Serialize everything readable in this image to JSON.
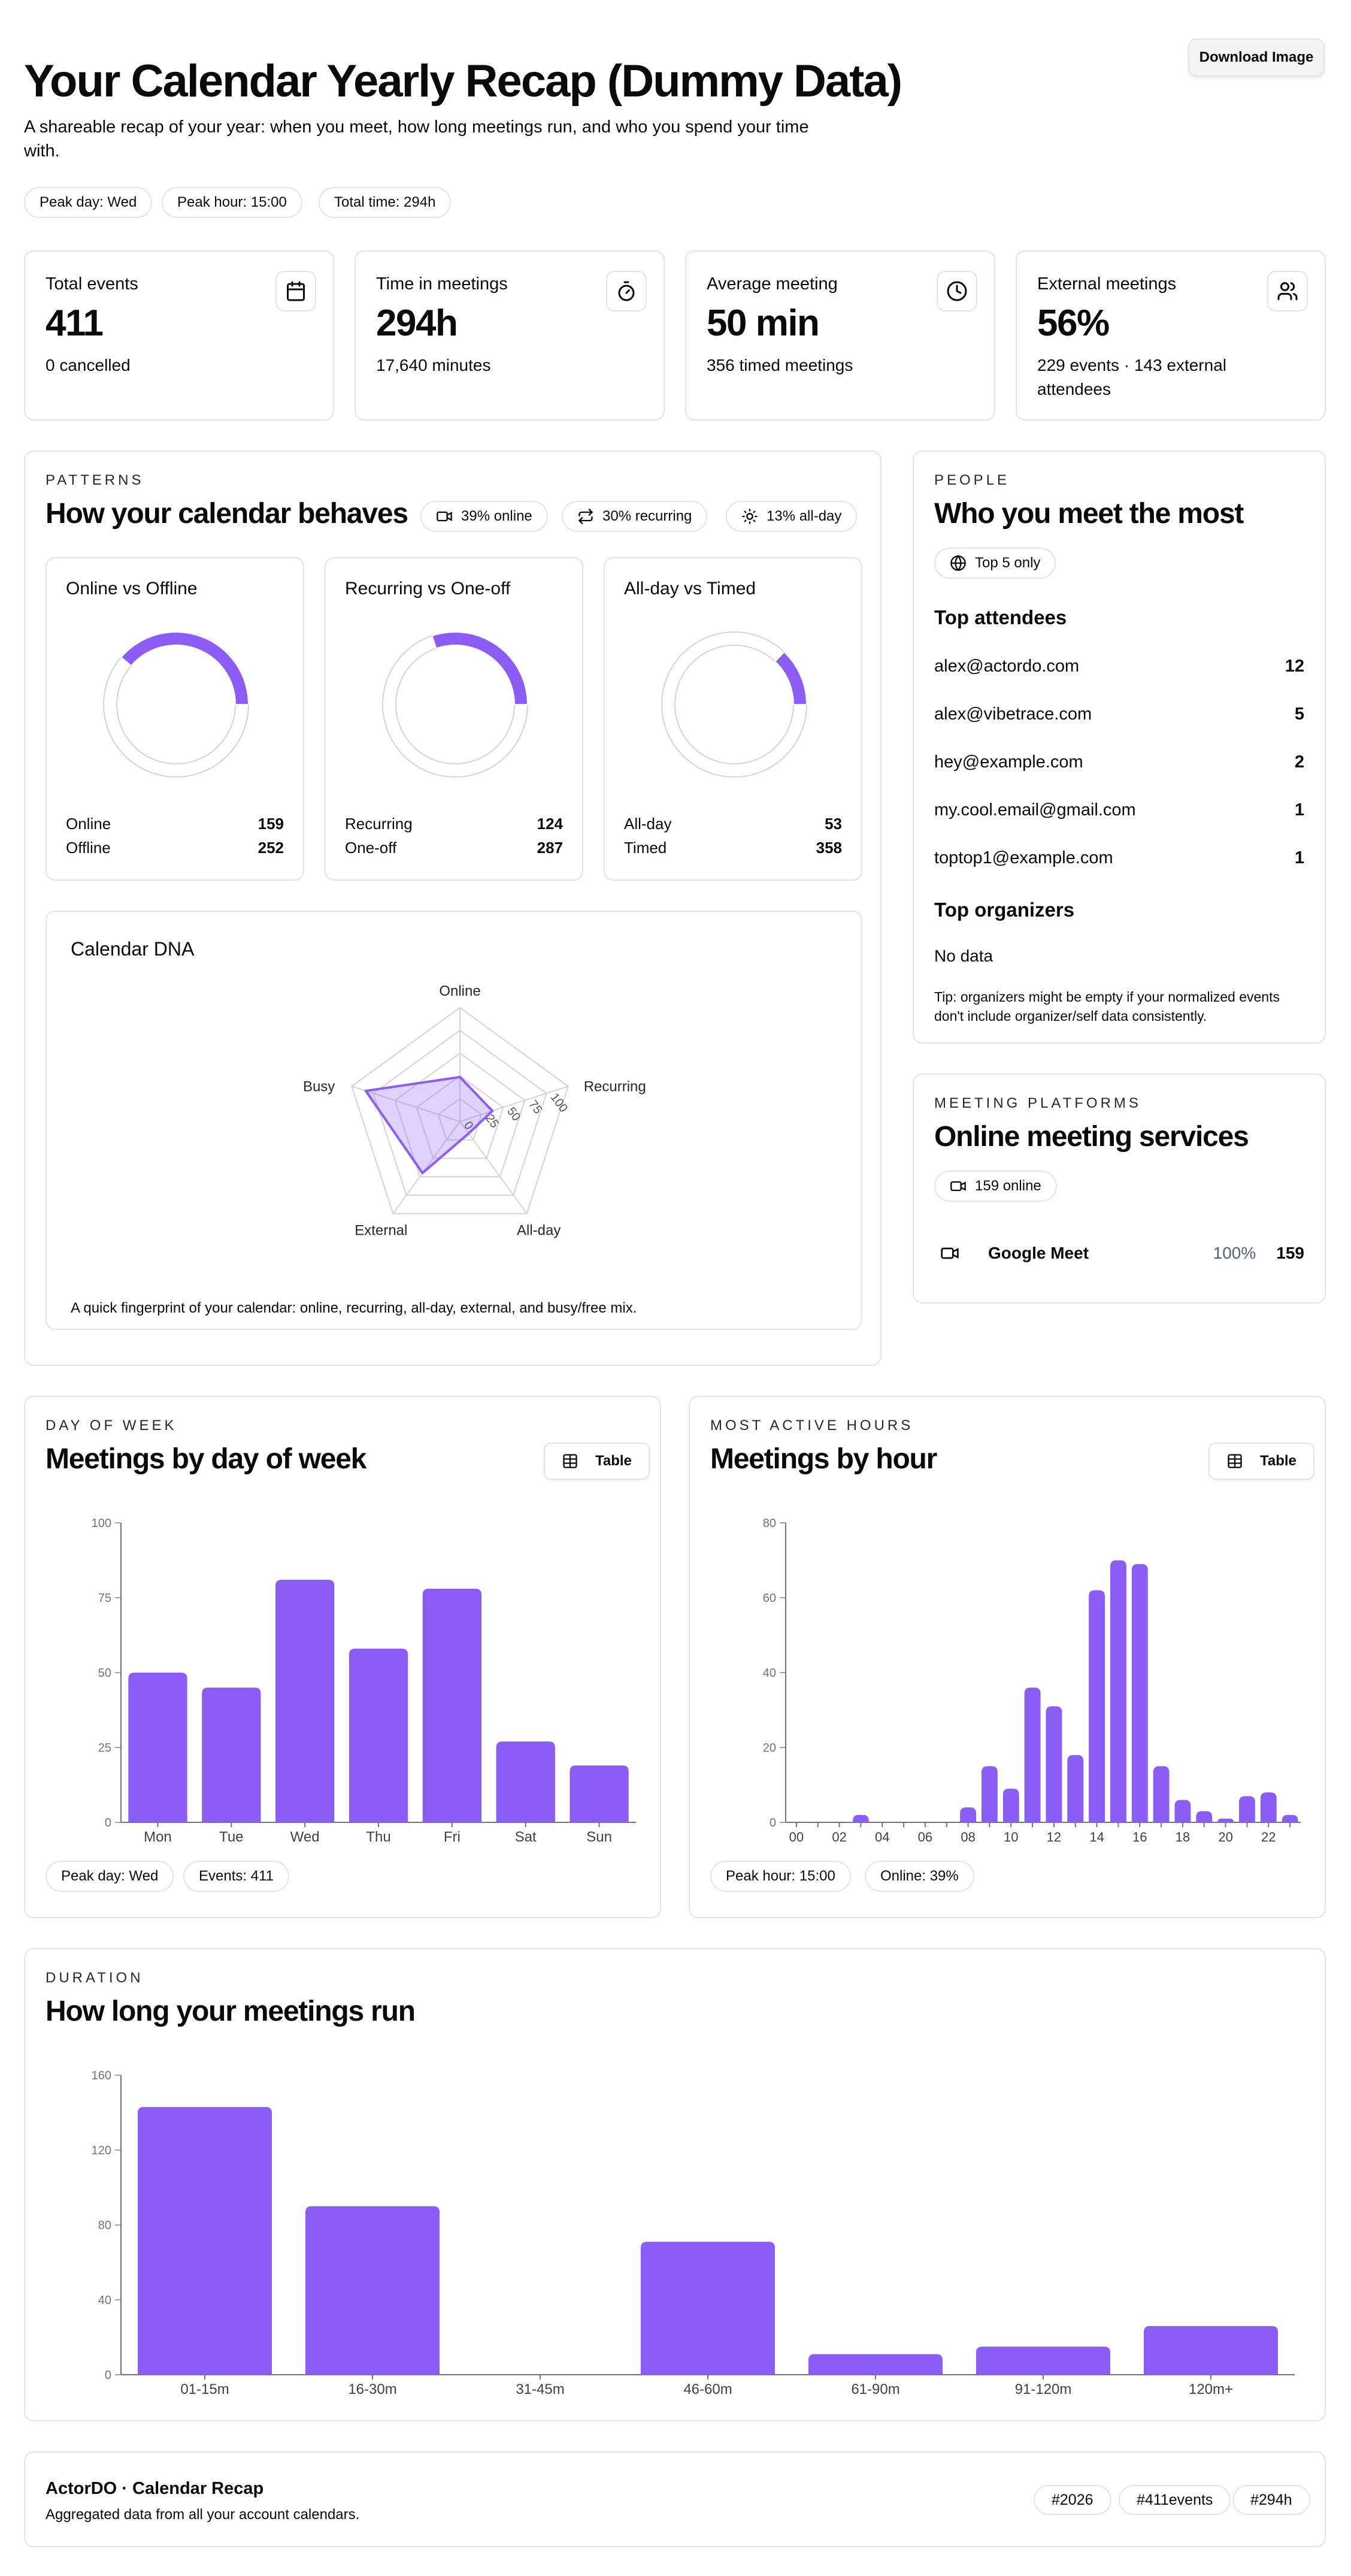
{
  "header": {
    "title": "Your Calendar Yearly Recap (Dummy Data)",
    "subtitle": "A shareable recap of your year: when you meet, how long meetings run, and who you spend your time with.",
    "download_label": "Download Image",
    "chips": [
      "Peak day: Wed",
      "Peak hour: 15:00",
      "Total time: 294h"
    ]
  },
  "stats": [
    {
      "label": "Total events",
      "value": "411",
      "sub": "0 cancelled",
      "icon": "calendar-icon"
    },
    {
      "label": "Time in meetings",
      "value": "294h",
      "sub": "17,640 minutes",
      "icon": "timer-icon"
    },
    {
      "label": "Average meeting",
      "value": "50 min",
      "sub": "356 timed meetings",
      "icon": "clock-icon"
    },
    {
      "label": "External meetings",
      "value": "56%",
      "sub": "229 events · 143 external attendees",
      "icon": "users-icon"
    }
  ],
  "patterns": {
    "eyebrow": "PATTERNS",
    "title": "How your calendar behaves",
    "chips": [
      "39% online",
      "30% recurring",
      "13% all-day"
    ],
    "donuts": [
      {
        "title": "Online vs Offline",
        "a_label": "Online",
        "a_value": 159,
        "b_label": "Offline",
        "b_value": 252
      },
      {
        "title": "Recurring vs One-off",
        "a_label": "Recurring",
        "a_value": 124,
        "b_label": "One-off",
        "b_value": 287
      },
      {
        "title": "All-day vs Timed",
        "a_label": "All-day",
        "a_value": 53,
        "b_label": "Timed",
        "b_value": 358
      }
    ],
    "dna": {
      "title": "Calendar DNA",
      "axes": [
        "Online",
        "Recurring",
        "All-day",
        "External",
        "Busy"
      ],
      "values": [
        39,
        30,
        13,
        56,
        87
      ],
      "ticks": [
        "0",
        "25",
        "50",
        "75",
        "100"
      ],
      "caption": "A quick fingerprint of your calendar: online, recurring, all-day, external, and busy/free mix."
    }
  },
  "people": {
    "eyebrow": "PEOPLE",
    "title": "Who you meet the most",
    "chip": "Top 5 only",
    "attendees_title": "Top attendees",
    "attendees": [
      {
        "email": "alex@actordo.com",
        "count": "12"
      },
      {
        "email": "alex@vibetrace.com",
        "count": "5"
      },
      {
        "email": "hey@example.com",
        "count": "2"
      },
      {
        "email": "my.cool.email@gmail.com",
        "count": "1"
      },
      {
        "email": "toptop1@example.com",
        "count": "1"
      }
    ],
    "organizers_title": "Top organizers",
    "organizers_empty": "No data",
    "tip": "Tip: organizers might be empty if your normalized events don't include organizer/self data consistently."
  },
  "platforms": {
    "eyebrow": "MEETING PLATFORMS",
    "title": "Online meeting services",
    "chip": "159 online",
    "items": [
      {
        "name": "Google Meet",
        "pct": "100%",
        "count": "159"
      }
    ]
  },
  "day_of_week": {
    "eyebrow": "DAY OF WEEK",
    "title": "Meetings by day of week",
    "table_label": "Table",
    "chips": [
      "Peak day: Wed",
      "Events: 411"
    ]
  },
  "hours": {
    "eyebrow": "MOST ACTIVE HOURS",
    "title": "Meetings by hour",
    "table_label": "Table",
    "chips": [
      "Peak hour: 15:00",
      "Online: 39%"
    ]
  },
  "duration": {
    "eyebrow": "DURATION",
    "title": "How long your meetings run"
  },
  "chart_data": [
    {
      "type": "bar",
      "title": "Meetings by day of week",
      "categories": [
        "Mon",
        "Tue",
        "Wed",
        "Thu",
        "Fri",
        "Sat",
        "Sun"
      ],
      "values": [
        50,
        45,
        81,
        58,
        78,
        27,
        19
      ],
      "ylim": [
        0,
        100
      ],
      "yticks": [
        "0",
        "25",
        "50",
        "75",
        "100"
      ]
    },
    {
      "type": "bar",
      "title": "Meetings by hour",
      "categories": [
        "00",
        "01",
        "02",
        "03",
        "04",
        "05",
        "06",
        "07",
        "08",
        "09",
        "10",
        "11",
        "12",
        "13",
        "14",
        "15",
        "16",
        "17",
        "18",
        "19",
        "20",
        "21",
        "22",
        "23"
      ],
      "values": [
        0,
        0,
        0,
        2,
        0,
        0,
        0,
        0,
        4,
        15,
        9,
        36,
        31,
        18,
        62,
        70,
        69,
        15,
        6,
        3,
        1,
        7,
        8,
        2
      ],
      "xticks": [
        "00",
        "02",
        "04",
        "06",
        "08",
        "10",
        "12",
        "14",
        "16",
        "18",
        "20",
        "22"
      ],
      "ylim": [
        0,
        80
      ],
      "yticks": [
        "0",
        "20",
        "40",
        "60",
        "80"
      ]
    },
    {
      "type": "bar",
      "title": "How long your meetings run",
      "categories": [
        "01-15m",
        "16-30m",
        "31-45m",
        "46-60m",
        "61-90m",
        "91-120m",
        "120m+"
      ],
      "values": [
        143,
        90,
        0,
        71,
        11,
        15,
        26
      ],
      "ylim": [
        0,
        160
      ],
      "yticks": [
        "0",
        "40",
        "80",
        "120",
        "160"
      ]
    }
  ],
  "footer": {
    "brand": "ActorDO · Calendar Recap",
    "sub": "Aggregated data from all your account calendars.",
    "tags": [
      "#2026",
      "#411events",
      "#294h"
    ]
  }
}
